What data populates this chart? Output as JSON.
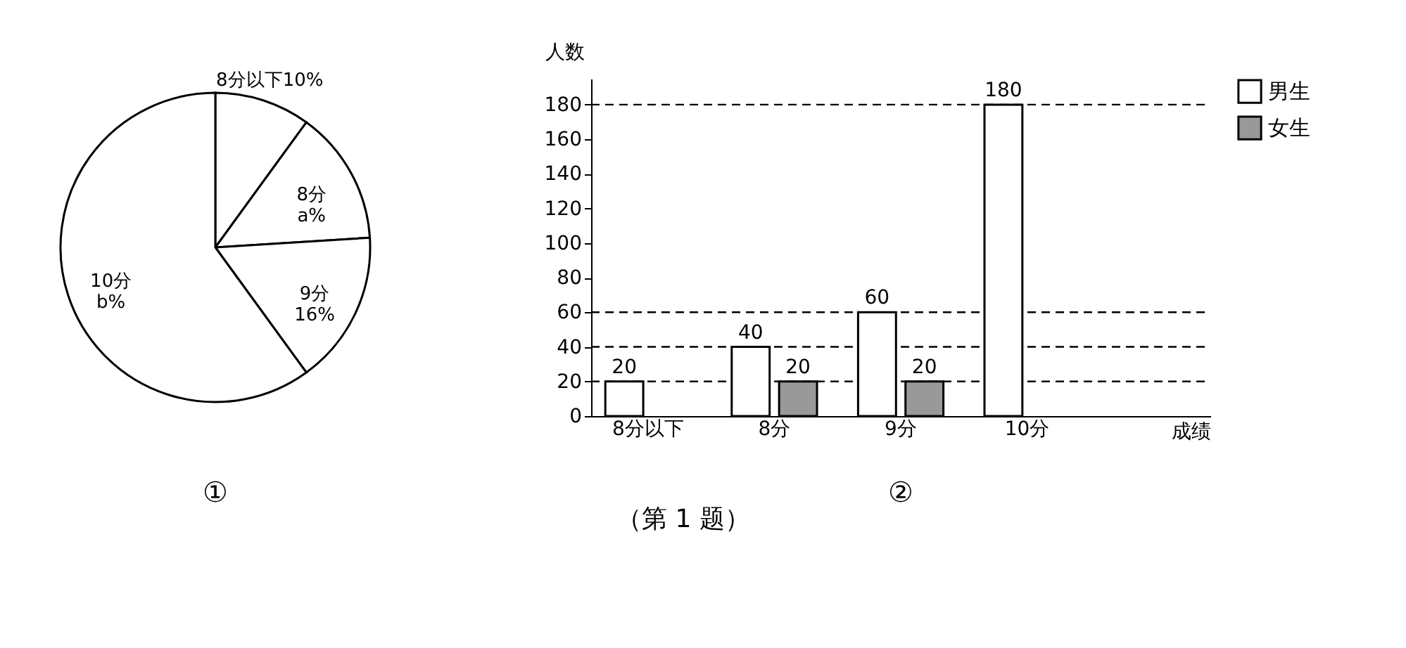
{
  "chart_data": [
    {
      "type": "pie",
      "categories": [
        "8分以下",
        "8分",
        "9分",
        "10分"
      ],
      "values": [
        10,
        14,
        16,
        60
      ],
      "colors": [
        "#ffffff",
        "#ffffff",
        "#ffffff",
        "#ffffff"
      ],
      "value_labels": [
        "10%",
        "a%",
        "16%",
        "b%"
      ],
      "annotations": [
        "①"
      ]
    },
    {
      "type": "bar",
      "categories": [
        "8分以下",
        "8分",
        "9分",
        "10分"
      ],
      "series": [
        {
          "name": "男生",
          "color": "#ffffff",
          "values": [
            20,
            40,
            60,
            180
          ]
        },
        {
          "name": "女生",
          "color": "#999999",
          "values": [
            null,
            20,
            20,
            null
          ]
        }
      ],
      "ylim": [
        0,
        195
      ],
      "yticks": [
        0,
        20,
        40,
        60,
        80,
        100,
        120,
        140,
        160,
        180
      ],
      "xlabel": "成绩",
      "ylabel": "人数",
      "data_labels": true,
      "legend": "top right",
      "grid": false,
      "ref_lines": [
        {
          "axis": "y",
          "value": 180,
          "line_style": "dashed"
        },
        {
          "axis": "y",
          "value": 60,
          "line_style": "dashed"
        },
        {
          "axis": "y",
          "value": 40,
          "line_style": "dashed"
        },
        {
          "axis": "y",
          "value": 20,
          "line_style": "dashed"
        }
      ],
      "annotations": [
        "②",
        "（第 1 题）"
      ]
    }
  ]
}
